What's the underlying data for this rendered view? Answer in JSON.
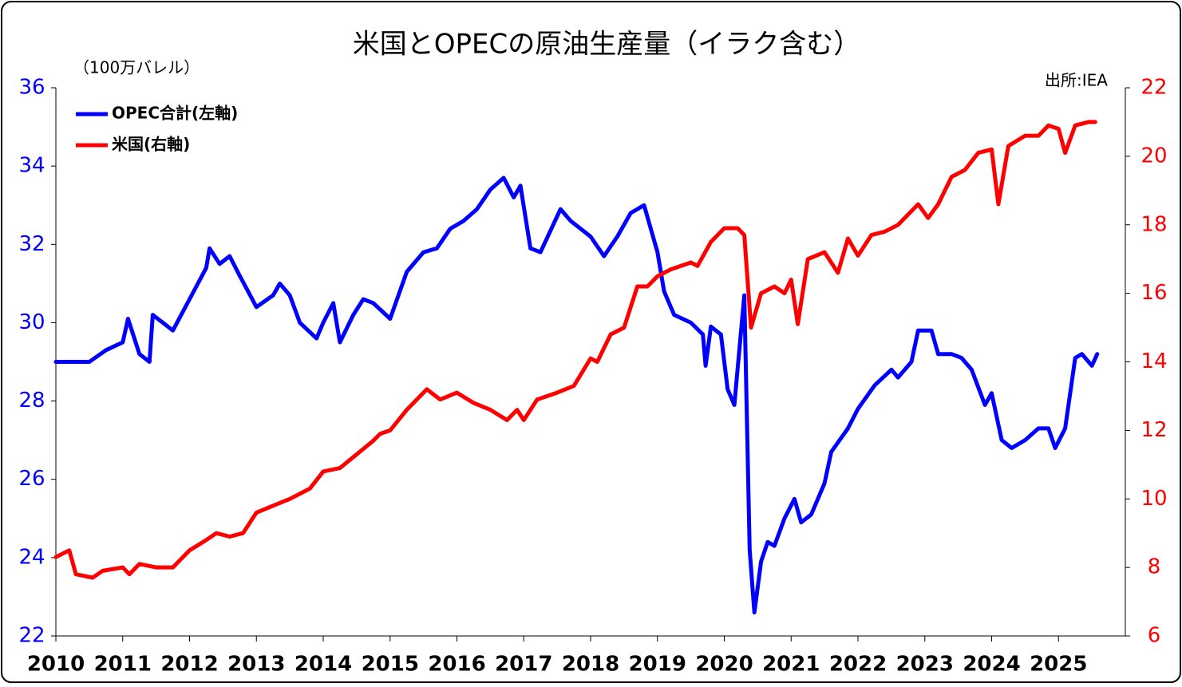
{
  "chart_data": {
    "type": "line",
    "title": "米国とOPECの原油生産量（イラク含む）",
    "y_label": "（100万バレル）",
    "source": "出所:IEA",
    "xlim": [
      2010,
      2026
    ],
    "xticks": [
      2010,
      2011,
      2012,
      2013,
      2014,
      2015,
      2016,
      2017,
      2018,
      2019,
      2020,
      2021,
      2022,
      2023,
      2024,
      2025
    ],
    "ylim": [
      22,
      36
    ],
    "yticks": [
      22,
      24,
      26,
      28,
      30,
      32,
      34,
      36
    ],
    "y2lim": [
      6,
      22
    ],
    "y2ticks": [
      6,
      8,
      10,
      12,
      14,
      16,
      18,
      20,
      22
    ],
    "legend": "upper left",
    "series": [
      {
        "name": "OPEC合計(左軸)",
        "color": "#0000ff",
        "axis": "y",
        "x": [
          2010.0,
          2010.25,
          2010.5,
          2010.75,
          2011.0,
          2011.08,
          2011.25,
          2011.4,
          2011.45,
          2011.6,
          2011.75,
          2012.0,
          2012.25,
          2012.3,
          2012.45,
          2012.6,
          2012.75,
          2013.0,
          2013.25,
          2013.35,
          2013.5,
          2013.65,
          2013.9,
          2014.0,
          2014.15,
          2014.25,
          2014.45,
          2014.6,
          2014.75,
          2015.0,
          2015.25,
          2015.5,
          2015.7,
          2015.9,
          2016.1,
          2016.3,
          2016.5,
          2016.7,
          2016.85,
          2016.95,
          2017.1,
          2017.25,
          2017.55,
          2017.7,
          2018.0,
          2018.2,
          2018.4,
          2018.6,
          2018.8,
          2019.0,
          2019.1,
          2019.25,
          2019.5,
          2019.68,
          2019.72,
          2019.8,
          2019.95,
          2020.05,
          2020.15,
          2020.3,
          2020.38,
          2020.45,
          2020.55,
          2020.65,
          2020.75,
          2020.9,
          2021.05,
          2021.15,
          2021.3,
          2021.5,
          2021.6,
          2021.85,
          2022.0,
          2022.25,
          2022.5,
          2022.6,
          2022.8,
          2022.9,
          2023.1,
          2023.2,
          2023.4,
          2023.55,
          2023.7,
          2023.9,
          2024.0,
          2024.15,
          2024.3,
          2024.5,
          2024.7,
          2024.85,
          2024.95,
          2025.1,
          2025.25,
          2025.35,
          2025.5,
          2025.58
        ],
        "values": [
          29.0,
          29.0,
          29.0,
          29.3,
          29.5,
          30.1,
          29.2,
          29.0,
          30.2,
          30.0,
          29.8,
          30.6,
          31.4,
          31.9,
          31.5,
          31.7,
          31.2,
          30.4,
          30.7,
          31.0,
          30.7,
          30.0,
          29.6,
          30.0,
          30.5,
          29.5,
          30.2,
          30.6,
          30.5,
          30.1,
          31.3,
          31.8,
          31.9,
          32.4,
          32.6,
          32.9,
          33.4,
          33.7,
          33.2,
          33.5,
          31.9,
          31.8,
          32.9,
          32.6,
          32.2,
          31.7,
          32.2,
          32.8,
          33.0,
          31.8,
          30.8,
          30.2,
          30.0,
          29.7,
          28.9,
          29.9,
          29.7,
          28.3,
          27.9,
          30.7,
          24.2,
          22.6,
          23.9,
          24.4,
          24.3,
          25.0,
          25.5,
          24.9,
          25.1,
          25.9,
          26.7,
          27.3,
          27.8,
          28.4,
          28.8,
          28.6,
          29.0,
          29.8,
          29.8,
          29.2,
          29.2,
          29.1,
          28.8,
          27.9,
          28.2,
          27.0,
          26.8,
          27.0,
          27.3,
          27.3,
          26.8,
          27.3,
          29.1,
          29.2,
          28.9,
          29.2
        ]
      },
      {
        "name": "米国(右軸)",
        "color": "#ff0000",
        "axis": "y2",
        "x": [
          2010.0,
          2010.2,
          2010.3,
          2010.55,
          2010.7,
          2011.0,
          2011.1,
          2011.25,
          2011.5,
          2011.75,
          2012.0,
          2012.25,
          2012.4,
          2012.6,
          2012.8,
          2013.0,
          2013.25,
          2013.5,
          2013.6,
          2013.8,
          2014.0,
          2014.25,
          2014.5,
          2014.75,
          2014.85,
          2015.0,
          2015.25,
          2015.35,
          2015.55,
          2015.75,
          2016.0,
          2016.25,
          2016.5,
          2016.75,
          2016.9,
          2017.0,
          2017.2,
          2017.5,
          2017.75,
          2018.0,
          2018.1,
          2018.3,
          2018.5,
          2018.7,
          2018.85,
          2019.0,
          2019.2,
          2019.5,
          2019.6,
          2019.8,
          2020.0,
          2020.2,
          2020.3,
          2020.4,
          2020.55,
          2020.75,
          2020.9,
          2021.0,
          2021.1,
          2021.25,
          2021.5,
          2021.7,
          2021.85,
          2022.0,
          2022.2,
          2022.4,
          2022.6,
          2022.75,
          2022.9,
          2023.05,
          2023.2,
          2023.4,
          2023.6,
          2023.8,
          2024.0,
          2024.1,
          2024.25,
          2024.5,
          2024.7,
          2024.85,
          2025.0,
          2025.1,
          2025.25,
          2025.45,
          2025.55
        ],
        "values": [
          8.3,
          8.5,
          7.8,
          7.7,
          7.9,
          8.0,
          7.8,
          8.1,
          8.0,
          8.0,
          8.5,
          8.8,
          9.0,
          8.9,
          9.0,
          9.6,
          9.8,
          10.0,
          10.1,
          10.3,
          10.8,
          10.9,
          11.3,
          11.7,
          11.9,
          12.0,
          12.6,
          12.8,
          13.2,
          12.9,
          13.1,
          12.8,
          12.6,
          12.3,
          12.6,
          12.3,
          12.9,
          13.1,
          13.3,
          14.1,
          14.0,
          14.8,
          15.0,
          16.2,
          16.2,
          16.5,
          16.7,
          16.9,
          16.8,
          17.5,
          17.9,
          17.9,
          17.7,
          15.0,
          16.0,
          16.2,
          16.0,
          16.4,
          15.1,
          17.0,
          17.2,
          16.6,
          17.6,
          17.1,
          17.7,
          17.8,
          18.0,
          18.3,
          18.6,
          18.2,
          18.6,
          19.4,
          19.6,
          20.1,
          20.2,
          18.6,
          20.3,
          20.6,
          20.6,
          20.9,
          20.8,
          20.1,
          20.9,
          21.0,
          21.0
        ]
      }
    ]
  }
}
